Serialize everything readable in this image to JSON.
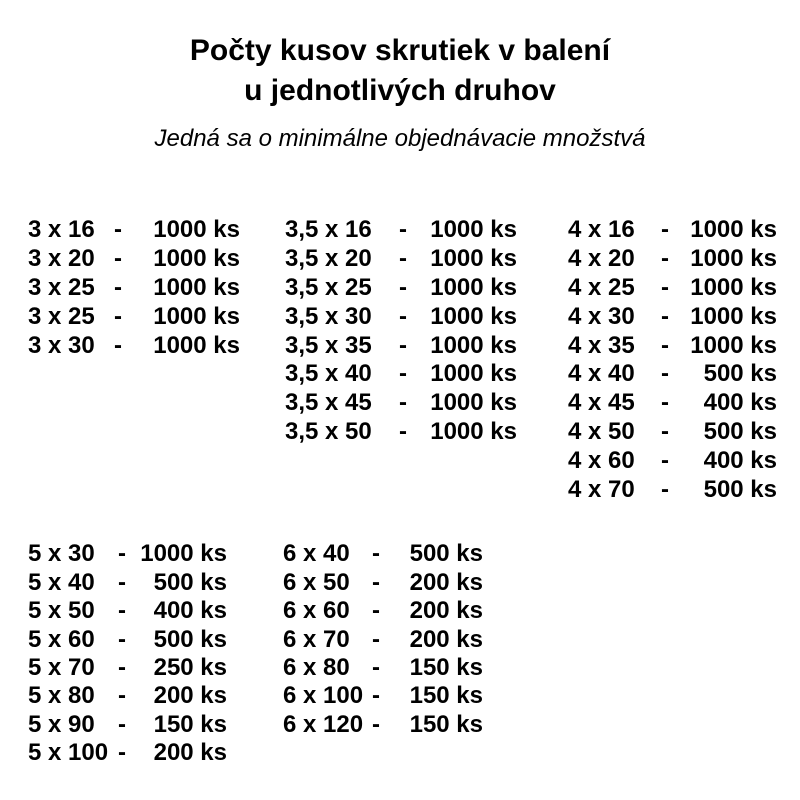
{
  "header": {
    "title_line1": "Počty kusov skrutiek v balení",
    "title_line2": "u jednotlivých druhov",
    "subtitle": "Jedná sa o minimálne objednávacie množstvá"
  },
  "separator": "-",
  "unit": "ks",
  "colors": {
    "text": "#000000",
    "background": "#ffffff"
  },
  "groups": [
    {
      "label": "screws-3mm",
      "rows": [
        {
          "size": "3 x 16",
          "qty": "1000 ks"
        },
        {
          "size": "3 x 20",
          "qty": "1000 ks"
        },
        {
          "size": "3 x 25",
          "qty": "1000 ks"
        },
        {
          "size": "3 x 25",
          "qty": "1000 ks"
        },
        {
          "size": "3 x 30",
          "qty": "1000 ks"
        }
      ]
    },
    {
      "label": "screws-3-5mm",
      "rows": [
        {
          "size": "3,5 x 16",
          "qty": "1000 ks"
        },
        {
          "size": "3,5 x 20",
          "qty": "1000 ks"
        },
        {
          "size": "3,5 x 25",
          "qty": "1000 ks"
        },
        {
          "size": "3,5 x 30",
          "qty": "1000 ks"
        },
        {
          "size": "3,5 x 35",
          "qty": "1000 ks"
        },
        {
          "size": "3,5 x 40",
          "qty": "1000 ks"
        },
        {
          "size": "3,5 x 45",
          "qty": "1000 ks"
        },
        {
          "size": "3,5 x 50",
          "qty": "1000 ks"
        }
      ]
    },
    {
      "label": "screws-4mm",
      "rows": [
        {
          "size": "4 x 16",
          "qty": "1000 ks"
        },
        {
          "size": "4 x 20",
          "qty": "1000 ks"
        },
        {
          "size": "4 x 25",
          "qty": "1000 ks"
        },
        {
          "size": "4 x 30",
          "qty": "1000 ks"
        },
        {
          "size": "4 x 35",
          "qty": "1000 ks"
        },
        {
          "size": "4 x 40",
          "qty": "500 ks"
        },
        {
          "size": "4 x 45",
          "qty": "400 ks"
        },
        {
          "size": "4 x 50",
          "qty": "500 ks"
        },
        {
          "size": "4 x 60",
          "qty": "400 ks"
        },
        {
          "size": "4 x 70",
          "qty": "500 ks"
        }
      ]
    },
    {
      "label": "screws-5mm",
      "rows": [
        {
          "size": "5 x 30",
          "qty": "1000 ks"
        },
        {
          "size": "5 x 40",
          "qty": "500 ks"
        },
        {
          "size": "5 x 50",
          "qty": "400 ks"
        },
        {
          "size": "5 x 60",
          "qty": "500 ks"
        },
        {
          "size": "5 x 70",
          "qty": "250 ks"
        },
        {
          "size": "5 x 80",
          "qty": "200 ks"
        },
        {
          "size": "5 x 90",
          "qty": "150 ks"
        },
        {
          "size": "5 x 100",
          "qty": "200 ks"
        }
      ]
    },
    {
      "label": "screws-6mm",
      "rows": [
        {
          "size": "6 x 40",
          "qty": "500 ks"
        },
        {
          "size": "6 x 50",
          "qty": "200 ks"
        },
        {
          "size": "6 x 60",
          "qty": "200 ks"
        },
        {
          "size": "6 x 70",
          "qty": "200 ks"
        },
        {
          "size": "6 x 80",
          "qty": "150 ks"
        },
        {
          "size": "6 x 100",
          "qty": "150 ks"
        },
        {
          "size": "6 x 120",
          "qty": "150 ks"
        }
      ]
    }
  ]
}
